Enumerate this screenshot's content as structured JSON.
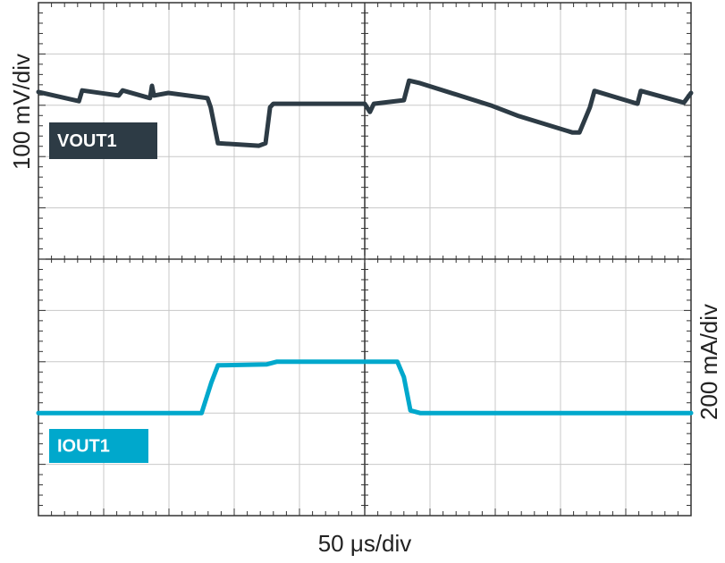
{
  "chart_data": {
    "type": "line",
    "xlabel": "50 μs/div",
    "ylabel": "100 mV/div",
    "y2label": "200 mA/div",
    "xlim": [
      0,
      10
    ],
    "ylim": [
      0,
      10
    ],
    "xticks": [
      0,
      1,
      2,
      3,
      4,
      5,
      6,
      7,
      8,
      9,
      10
    ],
    "yticks": [
      0,
      1,
      2,
      3,
      4,
      5,
      6,
      7,
      8,
      9,
      10
    ],
    "grid": true,
    "series": [
      {
        "name": "VOUT1",
        "color": "#2d3b45",
        "x": [
          0,
          0.62,
          0.67,
          1.23,
          1.29,
          1.71,
          1.74,
          1.77,
          1.99,
          2.59,
          2.64,
          2.75,
          3.38,
          3.48,
          3.55,
          3.6,
          5.0,
          5.08,
          5.14,
          5.6,
          5.68,
          5.85,
          6.95,
          7.36,
          8.18,
          8.29,
          8.45,
          8.52,
          9.18,
          9.23,
          9.89,
          10
        ],
        "values": [
          8.26,
          8.08,
          8.29,
          8.19,
          8.29,
          8.14,
          8.38,
          8.19,
          8.24,
          8.14,
          7.96,
          7.26,
          7.21,
          7.26,
          7.96,
          8.03,
          8.03,
          7.87,
          8.03,
          8.1,
          8.48,
          8.43,
          7.99,
          7.79,
          7.47,
          7.47,
          7.96,
          8.28,
          8.03,
          8.28,
          8.05,
          8.24
        ]
      },
      {
        "name": "IOUT1",
        "color": "#00a8cc",
        "x": [
          0,
          2.5,
          2.65,
          2.75,
          3.5,
          3.65,
          5.5,
          5.6,
          5.7,
          5.85,
          10
        ],
        "values": [
          2.0,
          2.0,
          2.6,
          2.93,
          2.95,
          3.0,
          3.0,
          2.7,
          2.05,
          2.0,
          2.0
        ]
      }
    ]
  }
}
